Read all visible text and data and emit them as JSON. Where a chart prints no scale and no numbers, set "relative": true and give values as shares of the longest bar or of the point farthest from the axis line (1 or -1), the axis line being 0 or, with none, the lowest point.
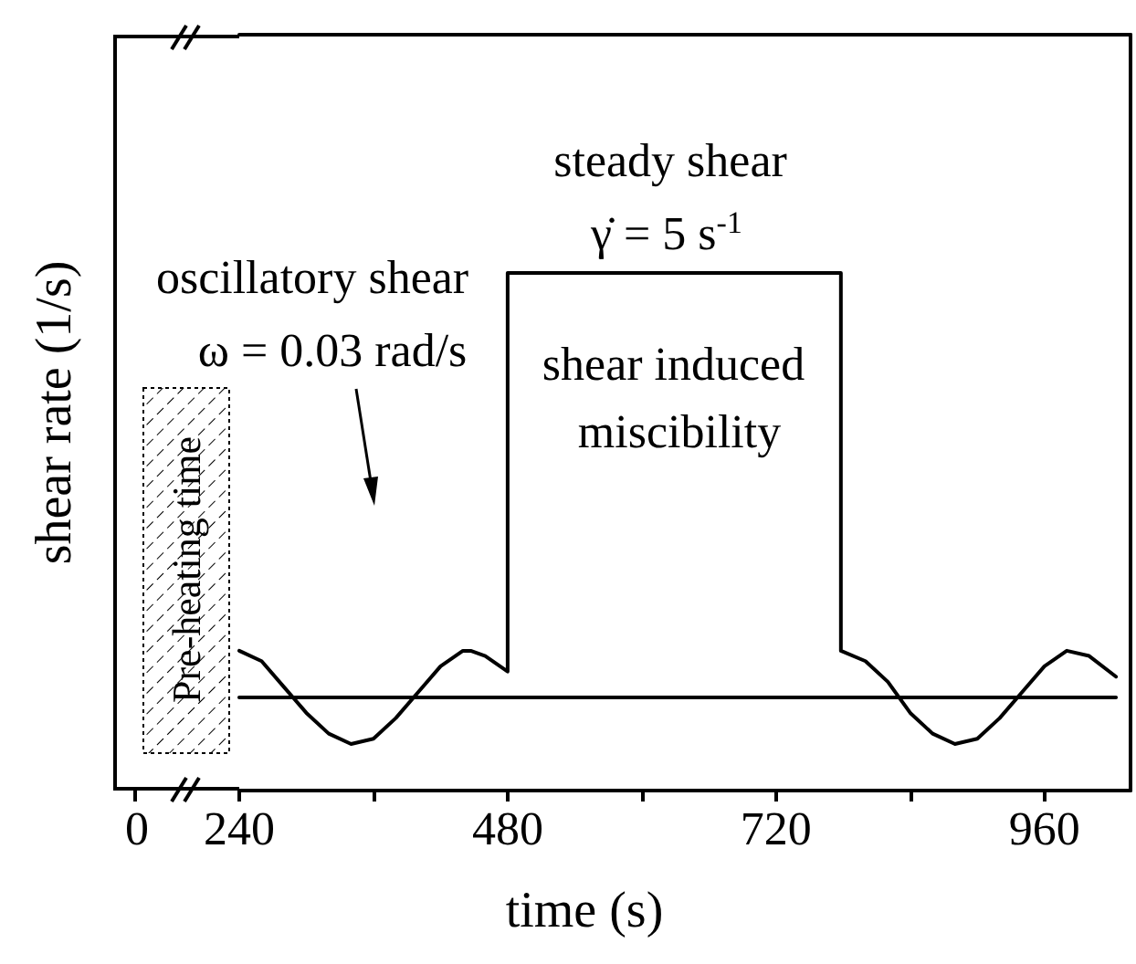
{
  "chart_data": {
    "type": "line",
    "relative": true,
    "xlabel": "time (s)",
    "ylabel": "shear rate (1/s)",
    "xlim": [
      240,
      1037
    ],
    "xticks": [
      240,
      {
        "value": 360,
        "label": null
      },
      480,
      {
        "value": 600,
        "label": null
      },
      720,
      {
        "value": 840,
        "label": null
      },
      960
    ],
    "tick_labels": "x",
    "marker": "none",
    "line_style": "solid",
    "series": [
      {
        "color": "#000000",
        "x": [
          240,
          260,
          280,
          300,
          320,
          340,
          360,
          380,
          400,
          420,
          440,
          447,
          460,
          480,
          480,
          778,
          778,
          800,
          820,
          840,
          860,
          880,
          900,
          920,
          940,
          960,
          980,
          1000,
          1024
        ],
        "values": [
          0.27,
          0.25,
          0.2,
          0.15,
          0.11,
          0.09,
          0.1,
          0.14,
          0.19,
          0.24,
          0.27,
          0.27,
          0.26,
          0.23,
          1,
          1,
          0.27,
          0.25,
          0.21,
          0.15,
          0.11,
          0.09,
          0.1,
          0.14,
          0.19,
          0.24,
          0.27,
          0.26,
          0.22
        ]
      },
      {
        "color": "#000000",
        "x": [
          240,
          1024
        ],
        "values": [
          0.18,
          0.18
        ]
      }
    ],
    "annotations": [
      "oscillatory shear",
      "ω = 0.03 rad/s",
      "steady shear",
      "γ̇ = 5 s$^{-1}$",
      "shear induced miscibility",
      "Pre-heating time",
      "0"
    ]
  }
}
